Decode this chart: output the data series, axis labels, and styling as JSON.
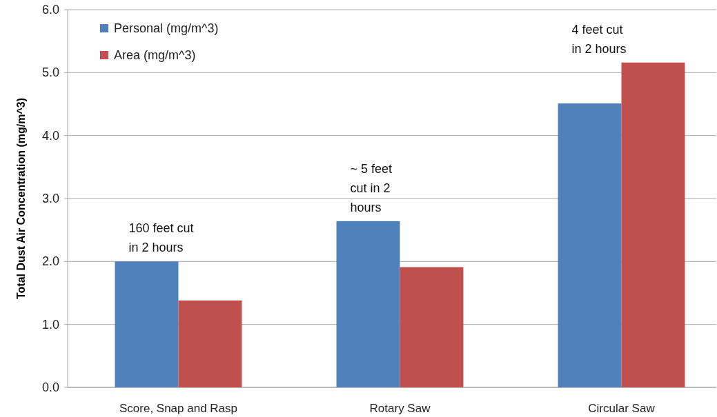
{
  "chart_data": {
    "type": "bar",
    "ylabel": "Total Dust Air Concentration (mg/m^3)",
    "categories": [
      "Score, Snap and Rasp",
      "Rotary Saw",
      "Circular Saw"
    ],
    "series": [
      {
        "name": "Personal (mg/m^3)",
        "color": "#4f81bd",
        "values": [
          2.0,
          2.64,
          4.51
        ]
      },
      {
        "name": "Area (mg/m^3)",
        "color": "#c0504d",
        "values": [
          1.38,
          1.91,
          5.16
        ]
      }
    ],
    "ylim": [
      0,
      6
    ],
    "yticks": [
      {
        "value": 0,
        "label": "0.0"
      },
      {
        "value": 1,
        "label": "1.0"
      },
      {
        "value": 2,
        "label": "2.0"
      },
      {
        "value": 3,
        "label": "3.0"
      },
      {
        "value": 4,
        "label": "4.0"
      },
      {
        "value": 5,
        "label": "5.0"
      },
      {
        "value": 6,
        "label": "6.0"
      }
    ],
    "grid": "y",
    "legend": "top left",
    "annotations": [
      {
        "text": "160 feet cut\nin 2 hours",
        "x": "Score, Snap and Rasp",
        "y": 2.0
      },
      {
        "text": "~ 5 feet\ncut in 2\nhours",
        "x": "Rotary Saw",
        "y": 2.64
      },
      {
        "text": "4 feet cut\nin 2 hours",
        "x": "Circular Saw",
        "y": 5.16
      }
    ]
  }
}
